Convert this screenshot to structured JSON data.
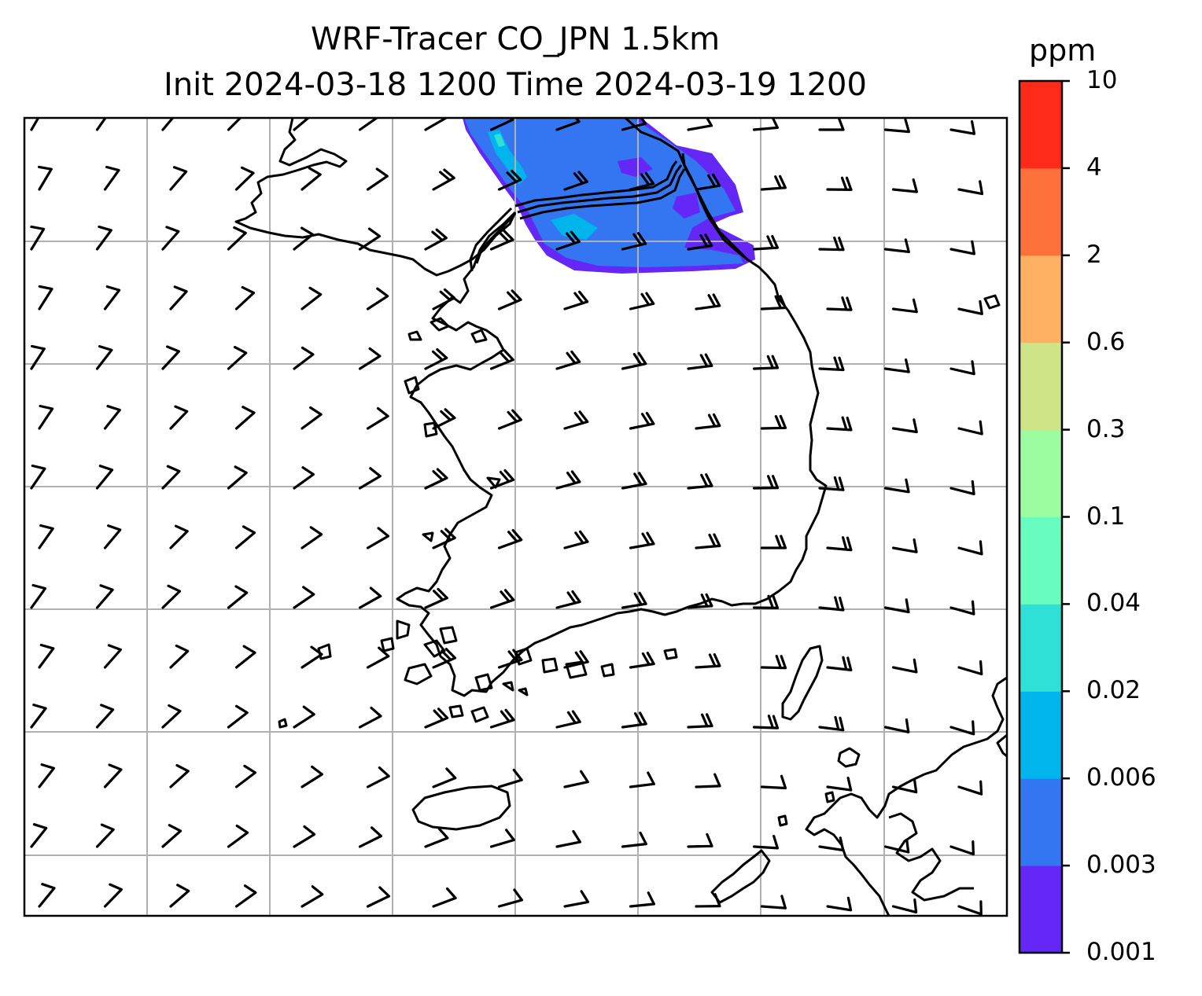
{
  "title": {
    "line1": "WRF-Tracer CO_JPN 1.5km",
    "line2": "Init 2024-03-18 1200 Time 2024-03-19 1200"
  },
  "colorbar": {
    "unit": "ppm",
    "levels": [
      "0.001",
      "0.003",
      "0.006",
      "0.02",
      "0.04",
      "0.1",
      "0.3",
      "0.6",
      "2",
      "4",
      "10"
    ],
    "colors": [
      "#6527f5",
      "#3475f2",
      "#00b4ec",
      "#2fe0d7",
      "#69fcbf",
      "#9bfca0",
      "#cee487",
      "#ffb062",
      "#ff713a",
      "#ff2a19"
    ]
  },
  "map": {
    "gridlines": true,
    "grid_color": "#b0b0b0",
    "coastline_color": "#000000",
    "field_colors": {
      "0.001-0.003": "#6527f5",
      "0.003-0.006": "#3475f2",
      "0.006-0.02": "#00b4ec",
      "0.02-0.04": "#2fe0d7"
    },
    "layers": [
      "tracer-co-plume",
      "coastlines",
      "borders",
      "wind-barbs"
    ]
  }
}
